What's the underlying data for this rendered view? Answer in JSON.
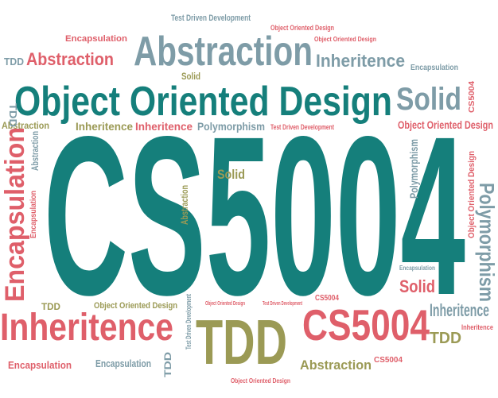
{
  "words": [
    "Test Driven Development",
    "Encapsulation",
    "Abstraction",
    "Object Oriented Design",
    "Object Oriented Design",
    "TDD",
    "Abstraction",
    "Inheritence",
    "Encapsulation",
    "Solid",
    "Object Oriented Design",
    "Solid",
    "Abstraction",
    "Inheritence",
    "Inheritence",
    "Polymorphism",
    "Test Driven Development",
    "Object Oriented Design",
    "Encapsulation",
    "Abstraction",
    "Encapsulation",
    "CS5004",
    "Solid",
    "Abstraction",
    "Polymorphism",
    "Polymorphism",
    "Object Oriented Design",
    "Solid",
    "Encapsulation",
    "TDD",
    "Object Oriented Design",
    "Object Oriented Design",
    "Test Driven Development",
    "CS5004",
    "Inheritence",
    "TDD",
    "CS5004",
    "Inheritence",
    "TDD",
    "Inheritence",
    "Encapsulation",
    "Encapsulation",
    "TDD",
    "Test Driven Development",
    "Abstraction",
    "CS5004",
    "Object Oriented Design",
    "CS5004",
    "TDD"
  ]
}
